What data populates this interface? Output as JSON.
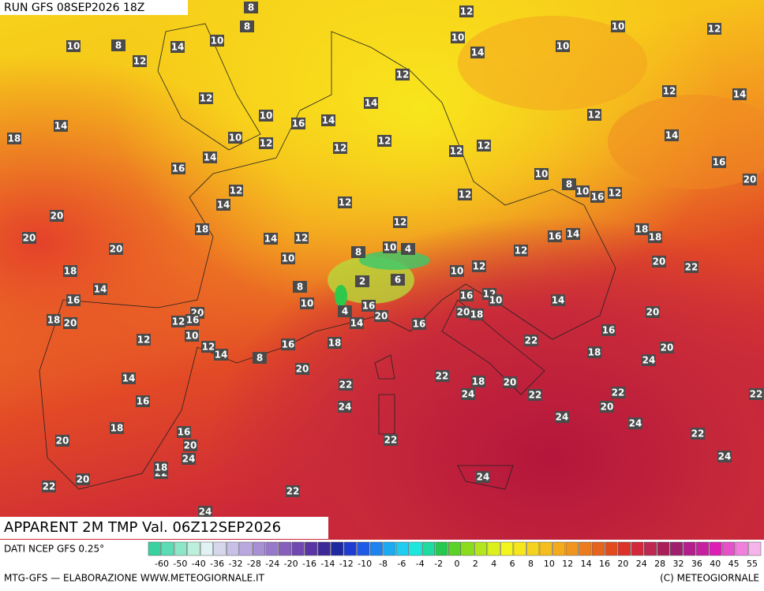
{
  "header": {
    "run": "RUN GFS 08SEP2026 18Z"
  },
  "map_labels": [
    8,
    12,
    8,
    10,
    10,
    12,
    10,
    8,
    14,
    10,
    14,
    10,
    12,
    12,
    12,
    14,
    12,
    14,
    14,
    10,
    16,
    14,
    12,
    18,
    10,
    12,
    12,
    12,
    12,
    12,
    14,
    16,
    14,
    10,
    16,
    12,
    14,
    12,
    12,
    8,
    10,
    16,
    12,
    20,
    20,
    18,
    12,
    18,
    18,
    20,
    20,
    14,
    12,
    16,
    14,
    8,
    10,
    4,
    10,
    12,
    20,
    22,
    18,
    2,
    6,
    10,
    12,
    8,
    14,
    16,
    10,
    16,
    12,
    10,
    14,
    20,
    4,
    16,
    18,
    20,
    12,
    16,
    14,
    20,
    16,
    20,
    18,
    20,
    16,
    12,
    10,
    12,
    14,
    16,
    18,
    22,
    18,
    20,
    8,
    24,
    20,
    14,
    22,
    22,
    18,
    20,
    24,
    22,
    22,
    22,
    16,
    24,
    20,
    24,
    24,
    18,
    16,
    22,
    20,
    22,
    20,
    24,
    24,
    22,
    18,
    24,
    20,
    22,
    22,
    24
  ],
  "footer": {
    "title": "APPARENT 2M TMP Val. 06Z12SEP2026",
    "source": "DATI NCEP GFS 0.25°",
    "credit": "MTG-GFS — ELABORAZIONE WWW.METEOGIORNALE.IT",
    "copyright": "(C) METEOGIORNALE"
  },
  "legend": {
    "ticks": [
      -60,
      -50,
      -40,
      -36,
      -32,
      -28,
      -24,
      -20,
      -16,
      -14,
      -12,
      -10,
      -8,
      -6,
      -4,
      -2,
      0,
      2,
      4,
      6,
      8,
      10,
      12,
      14,
      16,
      20,
      24,
      28,
      32,
      36,
      40,
      45,
      55
    ]
  }
}
